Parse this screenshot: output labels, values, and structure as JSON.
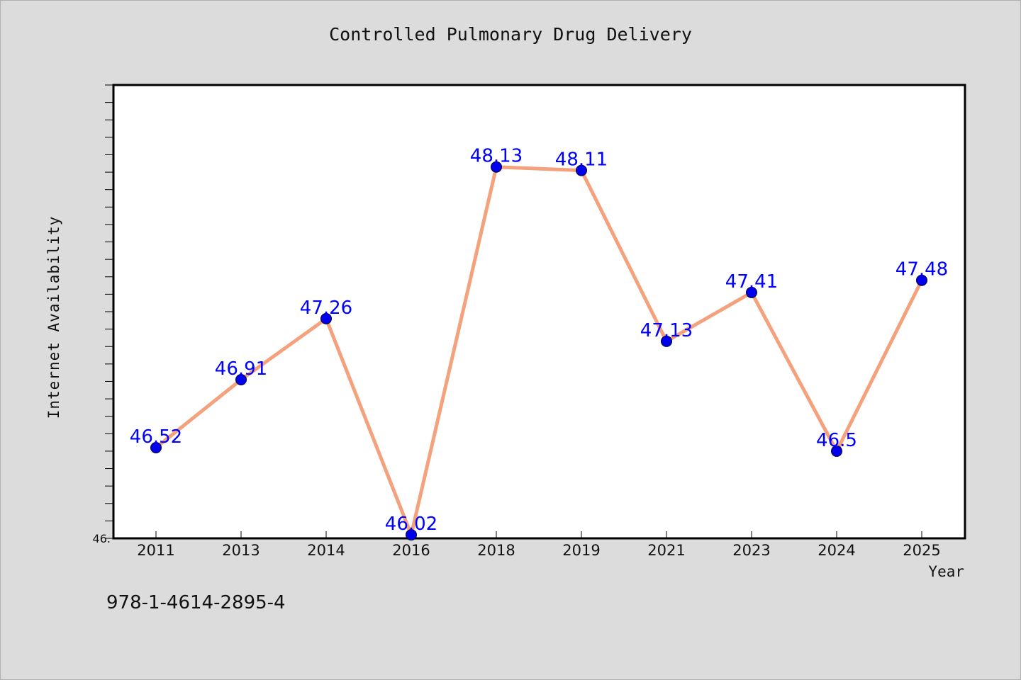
{
  "chart_data": {
    "type": "line",
    "title": "Controlled Pulmonary Drug Delivery",
    "xlabel": "Year",
    "ylabel": "Internet Availability",
    "categories": [
      "2011",
      "2013",
      "2014",
      "2016",
      "2018",
      "2019",
      "2021",
      "2023",
      "2024",
      "2025"
    ],
    "values": [
      46.52,
      46.91,
      47.26,
      46.02,
      48.13,
      48.11,
      47.13,
      47.41,
      46.5,
      47.48
    ],
    "data_labels": [
      "46.52",
      "46.91",
      "47.26",
      "46.02",
      "48.13",
      "48.11",
      "47.13",
      "47.41",
      "46.5",
      "47.48"
    ],
    "ylim": [
      46.0,
      48.6
    ],
    "y_tick_labels": [
      "46."
    ],
    "grid": false,
    "line_color": "#f4a27e",
    "marker_color": "#0000ee",
    "label_color": "#0000ff"
  },
  "footer": {
    "code": "978-1-4614-2895-4"
  }
}
